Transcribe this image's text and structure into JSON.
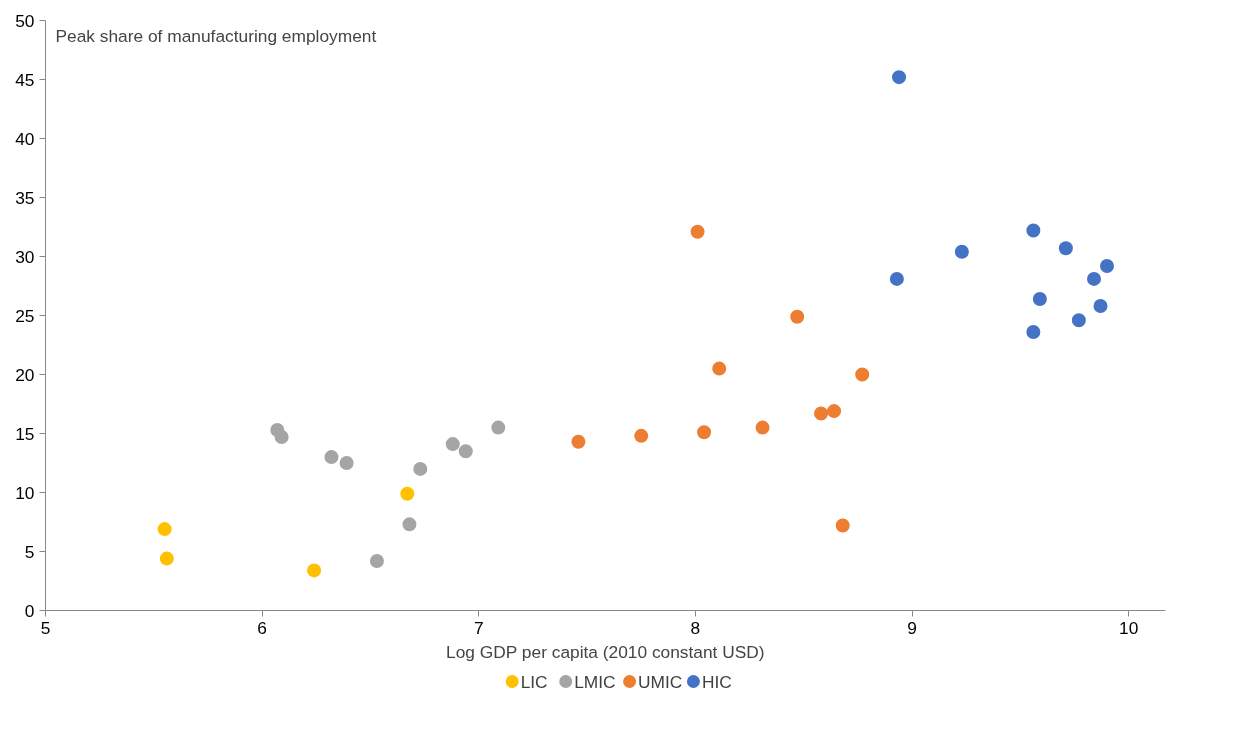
{
  "chart_data": {
    "type": "scatter",
    "xlabel": "Log GDP per capita (2010 constant USD)",
    "annotations": [
      "Peak share of manufacturing employment"
    ],
    "xlim": [
      5,
      10.17
    ],
    "ylim": [
      0,
      50
    ],
    "xticks": [
      5,
      6,
      7,
      8,
      9,
      10
    ],
    "yticks": [
      0,
      5,
      10,
      15,
      20,
      25,
      30,
      35,
      40,
      45,
      50
    ],
    "grid": false,
    "legend": "bottom",
    "marker": "circle",
    "series": [
      {
        "name": "LIC",
        "color": "#ffc000",
        "x": [
          5.55,
          5.56,
          6.24,
          6.67
        ],
        "values": [
          6.9,
          4.4,
          3.4,
          9.9
        ]
      },
      {
        "name": "LMIC",
        "color": "#a5a5a5",
        "x": [
          6.07,
          6.09,
          6.32,
          6.39,
          6.73,
          6.68,
          6.53,
          6.88,
          6.94,
          7.09
        ],
        "values": [
          15.3,
          14.7,
          13.0,
          12.5,
          12.0,
          7.3,
          4.2,
          14.1,
          13.5,
          15.5
        ]
      },
      {
        "name": "UMIC",
        "color": "#ed7d31",
        "x": [
          7.46,
          7.75,
          8.01,
          8.04,
          8.11,
          8.31,
          8.47,
          8.58,
          8.64,
          8.77,
          8.68
        ],
        "values": [
          14.3,
          14.8,
          32.1,
          15.1,
          20.5,
          15.5,
          24.9,
          16.7,
          16.9,
          20.0,
          7.2
        ]
      },
      {
        "name": "HIC",
        "color": "#4472c4",
        "x": [
          8.94,
          8.93,
          9.23,
          9.56,
          9.59,
          9.56,
          9.71,
          9.77,
          9.84,
          9.87,
          9.9
        ],
        "values": [
          45.2,
          28.1,
          30.4,
          32.2,
          26.4,
          23.6,
          30.7,
          24.6,
          28.1,
          25.8,
          29.2
        ]
      }
    ]
  }
}
